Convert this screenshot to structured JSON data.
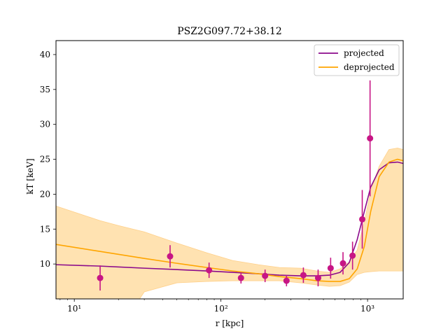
{
  "chart_data": {
    "type": "line",
    "title": "PSZ2G097.72+38.12",
    "xlabel": "r [kpc]",
    "ylabel": "kT [keV]",
    "xscale": "log",
    "xlim": [
      7.5,
      1750
    ],
    "ylim": [
      5,
      42
    ],
    "x_tick_labels": [
      "10¹",
      "10²",
      "10³"
    ],
    "x_tick_values": [
      10,
      100,
      1000
    ],
    "y_ticks": [
      10,
      15,
      20,
      25,
      30,
      35,
      40
    ],
    "grid": false,
    "legend_position": "top-right",
    "colors": {
      "projected": "#8b0a8b",
      "deprojected": "#ffa500",
      "band": "#ffdfa8",
      "points": "#c71585"
    },
    "series": [
      {
        "name": "projected",
        "kind": "line",
        "x": [
          7.5,
          15,
          30,
          50,
          80,
          120,
          180,
          250,
          350,
          450,
          550,
          650,
          750,
          850,
          950,
          1050,
          1200,
          1400,
          1600,
          1750
        ],
        "y": [
          9.9,
          9.7,
          9.4,
          9.2,
          9.0,
          8.8,
          8.6,
          8.4,
          8.3,
          8.3,
          8.4,
          8.8,
          10.2,
          13.5,
          17.5,
          21.0,
          23.5,
          24.5,
          24.6,
          24.4
        ]
      },
      {
        "name": "deprojected",
        "kind": "line",
        "x": [
          7.5,
          15,
          30,
          50,
          80,
          120,
          180,
          250,
          350,
          450,
          550,
          650,
          750,
          850,
          950,
          1050,
          1200,
          1400,
          1600,
          1750
        ],
        "y": [
          12.8,
          11.8,
          10.8,
          10.1,
          9.5,
          9.0,
          8.6,
          8.2,
          7.9,
          7.6,
          7.5,
          7.5,
          7.9,
          9.3,
          12.5,
          17.5,
          22.5,
          24.6,
          25.0,
          24.8
        ]
      },
      {
        "name": "",
        "kind": "band",
        "x": [
          7.5,
          15,
          20,
          25,
          30,
          50,
          80,
          120,
          180,
          250,
          350,
          450,
          550,
          650,
          750,
          850,
          950,
          1050,
          1200,
          1400,
          1600,
          1750
        ],
        "y_low": [
          1.0,
          1.0,
          2.0,
          3.5,
          6.0,
          7.3,
          7.5,
          7.6,
          7.6,
          7.6,
          7.3,
          7.0,
          6.8,
          6.9,
          7.4,
          8.5,
          8.8,
          8.9,
          9.0,
          9.0,
          9.0,
          9.0
        ],
        "y_high": [
          18.3,
          16.2,
          15.5,
          15.0,
          14.6,
          13.0,
          11.6,
          10.5,
          9.9,
          9.5,
          9.4,
          9.0,
          8.8,
          9.3,
          10.3,
          12.0,
          16.0,
          20.5,
          24.0,
          26.4,
          26.6,
          26.4
        ]
      },
      {
        "name": "",
        "kind": "points",
        "x": [
          15,
          45,
          83,
          137,
          200,
          280,
          365,
          460,
          560,
          680,
          790,
          920,
          1040
        ],
        "y": [
          8.0,
          11.1,
          9.1,
          8.0,
          8.3,
          7.6,
          8.4,
          8.0,
          9.4,
          10.1,
          11.2,
          16.4,
          28.0
        ],
        "err": [
          1.8,
          1.6,
          1.1,
          0.8,
          0.9,
          0.8,
          1.1,
          1.2,
          1.5,
          1.6,
          2.0,
          4.2,
          8.3
        ]
      }
    ]
  }
}
